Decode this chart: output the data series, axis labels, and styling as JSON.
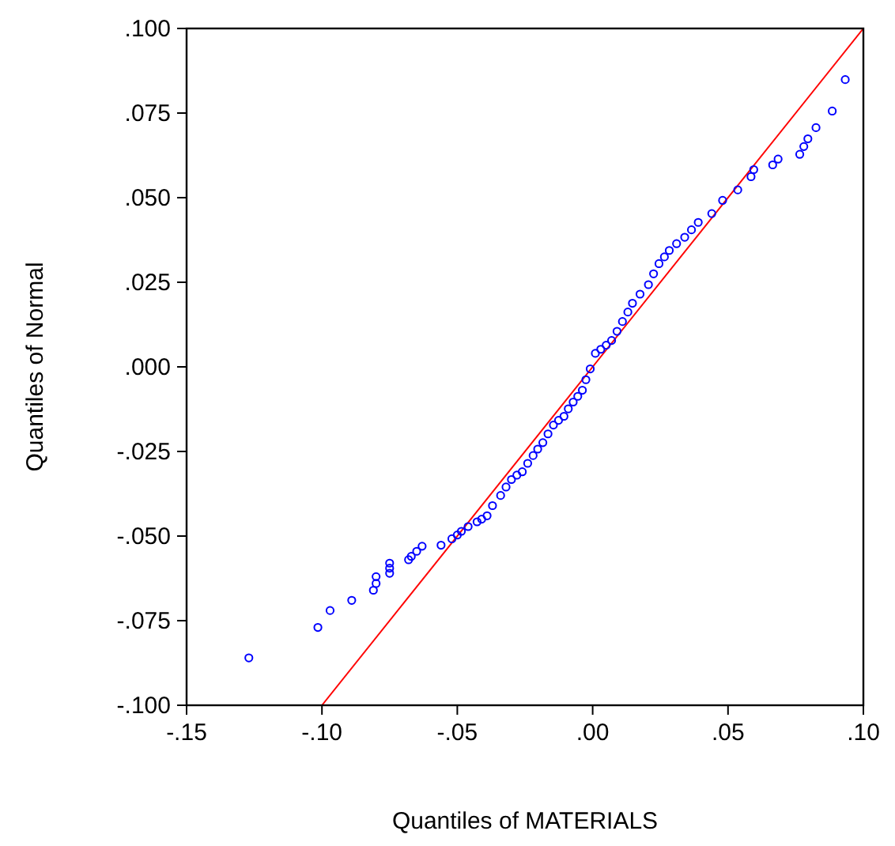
{
  "chart_data": {
    "type": "scatter",
    "xlabel": "Quantiles of MATERIALS",
    "ylabel": "Quantiles of Normal",
    "xlim": [
      -0.15,
      0.1
    ],
    "ylim": [
      -0.1,
      0.1
    ],
    "xticks": [
      {
        "value": -0.15,
        "label": "-.15"
      },
      {
        "value": -0.1,
        "label": "-.10"
      },
      {
        "value": -0.05,
        "label": "-.05"
      },
      {
        "value": 0,
        "label": ".00"
      },
      {
        "value": 0.05,
        "label": ".05"
      },
      {
        "value": 0.1,
        "label": ".10"
      }
    ],
    "yticks": [
      {
        "value": -0.1,
        "label": "-.100"
      },
      {
        "value": -0.075,
        "label": "-.075"
      },
      {
        "value": -0.05,
        "label": "-.050"
      },
      {
        "value": -0.025,
        "label": "-.025"
      },
      {
        "value": 0,
        "label": ".000"
      },
      {
        "value": 0.025,
        "label": ".025"
      },
      {
        "value": 0.05,
        "label": ".050"
      },
      {
        "value": 0.075,
        "label": ".075"
      },
      {
        "value": 0.1,
        "label": ".100"
      }
    ],
    "grid": false,
    "series": [
      {
        "marker": "circle",
        "color": "#0000ff",
        "x": [
          -0.127,
          -0.1015,
          -0.097,
          -0.089,
          -0.081,
          -0.08,
          -0.08,
          -0.075,
          -0.075,
          -0.075,
          -0.068,
          -0.067,
          -0.065,
          -0.063,
          -0.056,
          -0.052,
          -0.05,
          -0.0485,
          -0.046,
          -0.0427,
          -0.041,
          -0.039,
          -0.037,
          -0.034,
          -0.032,
          -0.03,
          -0.028,
          -0.026,
          -0.024,
          -0.022,
          -0.0203,
          -0.0184,
          -0.0165,
          -0.0145,
          -0.0126,
          -0.0106,
          -0.009,
          -0.0072,
          -0.0055,
          -0.0038,
          -0.0025,
          -0.0009,
          0.001,
          0.003,
          0.005,
          0.007,
          0.009,
          0.011,
          0.013,
          0.0147,
          0.0175,
          0.0206,
          0.0225,
          0.0245,
          0.0265,
          0.0283,
          0.031,
          0.034,
          0.0365,
          0.039,
          0.044,
          0.048,
          0.0536,
          0.0585,
          0.0595,
          0.0665,
          0.0685,
          0.0765,
          0.078,
          0.0795,
          0.0825,
          0.0885,
          0.0933
        ],
        "values": [
          -0.086,
          -0.077,
          -0.072,
          -0.069,
          -0.066,
          -0.064,
          -0.062,
          -0.061,
          -0.0595,
          -0.058,
          -0.057,
          -0.056,
          -0.0545,
          -0.053,
          -0.0527,
          -0.0508,
          -0.0497,
          -0.0486,
          -0.0472,
          -0.0458,
          -0.045,
          -0.044,
          -0.041,
          -0.038,
          -0.0355,
          -0.0333,
          -0.032,
          -0.031,
          -0.0285,
          -0.0262,
          -0.0243,
          -0.0224,
          -0.0198,
          -0.0172,
          -0.0158,
          -0.0146,
          -0.0124,
          -0.0104,
          -0.0087,
          -0.0069,
          -0.0038,
          -0.0006,
          0.004,
          0.0052,
          0.0064,
          0.0078,
          0.0105,
          0.0134,
          0.0162,
          0.0188,
          0.0215,
          0.0243,
          0.0275,
          0.0305,
          0.0325,
          0.0344,
          0.0364,
          0.0383,
          0.0405,
          0.0427,
          0.0453,
          0.0492,
          0.0523,
          0.0562,
          0.0583,
          0.0597,
          0.0614,
          0.0628,
          0.0651,
          0.0674,
          0.0707,
          0.0756,
          0.0849
        ]
      },
      {
        "type": "line",
        "color": "#ff0000",
        "x": [
          -0.1,
          0.1
        ],
        "values": [
          -0.1,
          0.1
        ]
      }
    ]
  }
}
